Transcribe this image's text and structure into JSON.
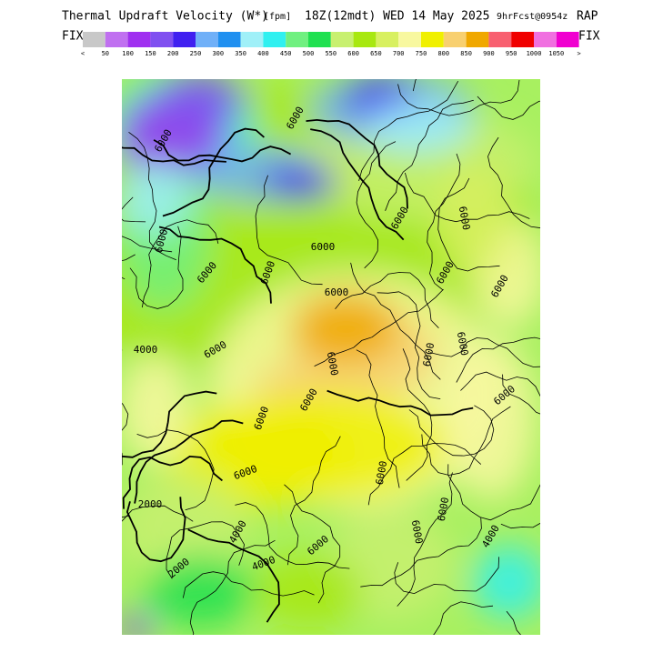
{
  "header": {
    "title": "Thermal Updraft Velocity (W*)",
    "units": "[fpm]",
    "valid_time": "18Z(12mdt) WED 14 May 2025",
    "forecast_info": "9hrFcst@0954z",
    "model": "RAP"
  },
  "colorbar": {
    "left_label": "FIX",
    "right_label": "FIX",
    "colors": [
      "#c8c8c8",
      "#c070f0",
      "#a030f0",
      "#8050f0",
      "#4020f0",
      "#70b0f8",
      "#2090f0",
      "#a0f0f8",
      "#30f0f0",
      "#70f080",
      "#20e050",
      "#c8f070",
      "#a8e810",
      "#d8f060",
      "#f8f8a0",
      "#f0f000",
      "#f8d070",
      "#f0a800",
      "#f86070",
      "#f00000",
      "#f070e0",
      "#f000d0"
    ],
    "labels": [
      "<",
      "50",
      "100",
      "150",
      "200",
      "250",
      "300",
      "350",
      "400",
      "450",
      "500",
      "550",
      "600",
      "650",
      "700",
      "750",
      "800",
      "850",
      "900",
      "950",
      "1000",
      "1050",
      ">"
    ]
  },
  "contour_labels": [
    "6000",
    "6000",
    "6000",
    "6000",
    "6000",
    "6000",
    "6000",
    "6000",
    "6000",
    "6000",
    "4000",
    "6000",
    "6000",
    "6000",
    "6000",
    "6000",
    "6000",
    "6000",
    "6000",
    "6000",
    "6000",
    "6000",
    "2000",
    "4000",
    "6000",
    "6000",
    "2000",
    "4000",
    "4000"
  ]
}
